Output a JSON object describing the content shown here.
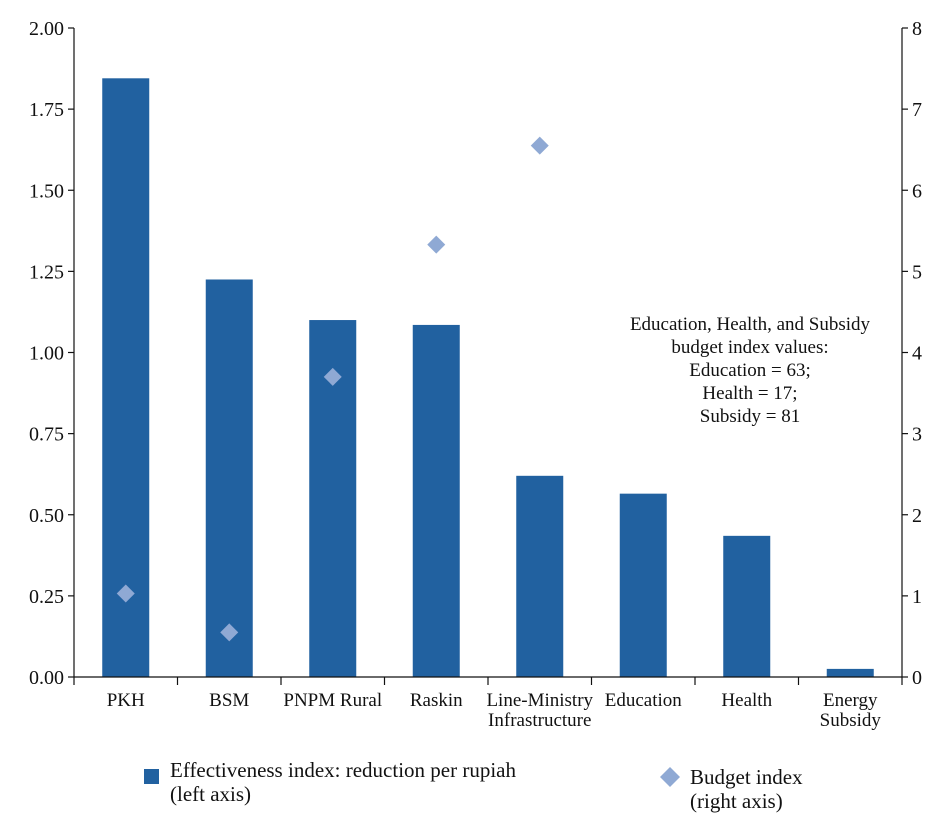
{
  "chart_data": {
    "type": "bar",
    "categories": [
      [
        "PKH"
      ],
      [
        "BSM"
      ],
      [
        "PNPM Rural"
      ],
      [
        "Raskin"
      ],
      [
        "Line-Ministry",
        "Infrastructure"
      ],
      [
        "Education"
      ],
      [
        "Health"
      ],
      [
        "Energy",
        "Subsidy"
      ]
    ],
    "series": [
      {
        "name": "Effectiveness index: reduction per rupiah (left axis)",
        "axis": "left",
        "kind": "bar",
        "color": "#2161A0",
        "values": [
          1.845,
          1.225,
          1.1,
          1.085,
          0.62,
          0.565,
          0.435,
          0.025
        ]
      },
      {
        "name": "Budget index (right axis)",
        "axis": "right",
        "kind": "scatter",
        "marker": "diamond",
        "color": "#8FA9D4",
        "values": [
          1.03,
          0.55,
          3.7,
          5.33,
          6.55,
          null,
          null,
          null
        ]
      }
    ],
    "y_left": {
      "range": [
        0,
        2
      ],
      "ticks": [
        "0.00",
        "0.25",
        "0.50",
        "0.75",
        "1.00",
        "1.25",
        "1.50",
        "1.75",
        "2.00"
      ]
    },
    "y_right": {
      "range": [
        0,
        8
      ],
      "ticks": [
        "0",
        "1",
        "2",
        "3",
        "4",
        "5",
        "6",
        "7",
        "8"
      ]
    },
    "annotation": [
      "Education, Health, and Subsidy",
      "budget index values:",
      "Education = 63;",
      "Health = 17;",
      "Subsidy = 81"
    ],
    "legend": {
      "placement": "bottom",
      "items": [
        {
          "lines": [
            "Effectiveness index: reduction per rupiah",
            "(left axis)"
          ],
          "symbol": "square",
          "color": "#2161A0"
        },
        {
          "lines": [
            "Budget index",
            "(right axis)"
          ],
          "symbol": "diamond",
          "color": "#8FA9D4"
        }
      ]
    },
    "grid": false
  }
}
